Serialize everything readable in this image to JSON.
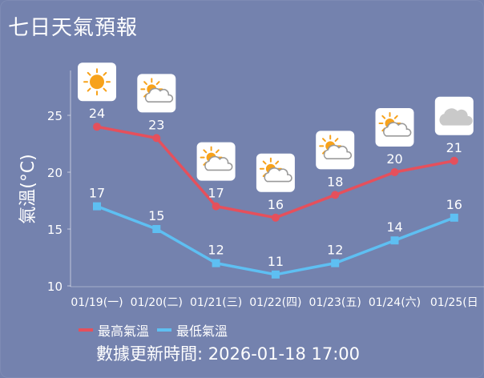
{
  "title": "七日天氣預報",
  "update": {
    "label": "數據更新時間:",
    "time": "2026-01-18 17:00"
  },
  "colors": {
    "high": "#e5505c",
    "low": "#5ebff2"
  },
  "chart_data": {
    "type": "line",
    "title": "七日天氣預報",
    "ylabel": "氣溫(°C)",
    "xlabel": "",
    "ylim": [
      10,
      28
    ],
    "yticks": [
      10,
      15,
      20,
      25
    ],
    "grid": false,
    "legend": "bottom-left",
    "categories": [
      "01/19(一)",
      "01/20(二)",
      "01/21(三)",
      "01/22(四)",
      "01/23(五)",
      "01/24(六)",
      "01/25(日"
    ],
    "series": [
      {
        "name": "最高氣溫",
        "values": [
          24,
          23,
          17,
          16,
          18,
          20,
          21
        ]
      },
      {
        "name": "最低氣溫",
        "values": [
          17,
          15,
          12,
          11,
          12,
          14,
          16
        ]
      }
    ],
    "icons": [
      "sun-icon",
      "partly-cloudy-icon",
      "partly-cloudy-icon",
      "partly-cloudy-icon",
      "partly-cloudy-icon",
      "partly-cloudy-icon",
      "cloud-icon"
    ]
  }
}
